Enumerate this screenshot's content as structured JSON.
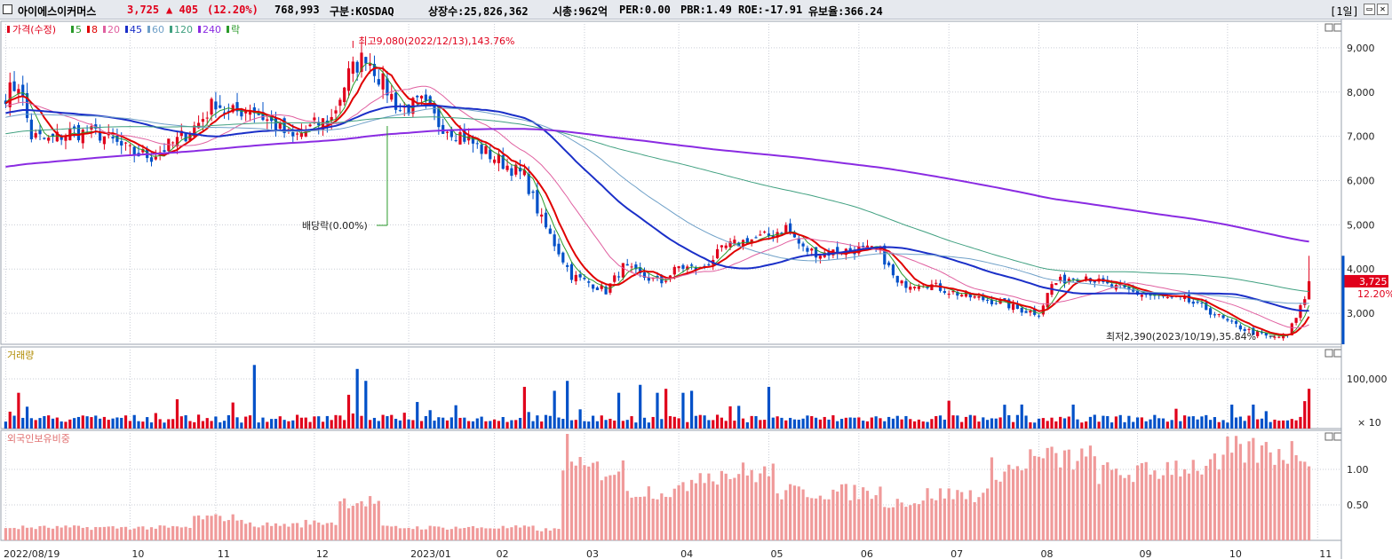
{
  "header": {
    "name": "아이에스이커머스",
    "price": "3,725",
    "change": "▲ 405",
    "change_pct": "(12.20%)",
    "volume": "768,993",
    "market": "구분:KOSDAQ",
    "shares": "상장수:25,826,362",
    "mcap": "시총:962억",
    "per": "PER:0.00",
    "pbr": "PBR:1.49",
    "roe": "ROE:-17.91",
    "float": "유보율:366.24",
    "period": "[1일]",
    "restore_icon": "restore-icon",
    "close_icon": "close-icon",
    "colors": {
      "up": "#e0001b",
      "down": "#0050c8"
    }
  },
  "legend": {
    "price_label": "가격(수정)",
    "ma": [
      {
        "label": "5",
        "color": "#2a9a2a"
      },
      {
        "label": "8",
        "color": "#e00000"
      },
      {
        "label": "20",
        "color": "#e060a0"
      },
      {
        "label": "45",
        "color": "#1a2fc8"
      },
      {
        "label": "60",
        "color": "#6fa0c8"
      },
      {
        "label": "120",
        "color": "#40a080"
      },
      {
        "label": "240",
        "color": "#8a2be2"
      }
    ],
    "ex_label": "락",
    "volume_label": "거래량",
    "foreign_label": "외국인보유비중"
  },
  "annotations": {
    "high": "최고9,080(2022/12/13),143.76%",
    "low": "최저2,390(2023/10/19),35.84%",
    "dividend": "배당락(0.00%)",
    "price_tag": "3,725",
    "price_tag_pct": "12.20%",
    "volume_unit": "× 10"
  },
  "chart_data": [
    {
      "type": "line",
      "title": "",
      "ylim": [
        2300,
        9600
      ],
      "y_ticks": [
        "9,000",
        "8,000",
        "7,000",
        "6,000",
        "5,000",
        "4,000",
        "3,000"
      ],
      "y_tick_values": [
        9000,
        8000,
        7000,
        6000,
        5000,
        4000,
        3000
      ],
      "x_tick_labels": [
        "2022/08/19",
        "10",
        "11",
        "12",
        "2023/01",
        "02",
        "03",
        "04",
        "05",
        "06",
        "07",
        "08",
        "09",
        "10",
        "11"
      ],
      "x_tick_index": [
        0,
        29,
        49,
        72,
        94,
        114,
        135,
        157,
        178,
        199,
        220,
        241,
        264,
        285,
        306
      ],
      "anchors": [
        [
          0,
          7950
        ],
        [
          3,
          8200
        ],
        [
          6,
          7000
        ],
        [
          10,
          6900
        ],
        [
          15,
          7100
        ],
        [
          22,
          7050
        ],
        [
          29,
          6650
        ],
        [
          34,
          6550
        ],
        [
          40,
          6900
        ],
        [
          45,
          7300
        ],
        [
          49,
          7800
        ],
        [
          52,
          7500
        ],
        [
          57,
          7650
        ],
        [
          62,
          7300
        ],
        [
          67,
          6950
        ],
        [
          72,
          7250
        ],
        [
          76,
          7400
        ],
        [
          80,
          8400
        ],
        [
          84,
          8850
        ],
        [
          88,
          8200
        ],
        [
          92,
          7600
        ],
        [
          97,
          7750
        ],
        [
          101,
          7300
        ],
        [
          106,
          7050
        ],
        [
          111,
          6700
        ],
        [
          116,
          6400
        ],
        [
          121,
          6100
        ],
        [
          125,
          5100
        ],
        [
          129,
          4400
        ],
        [
          132,
          3850
        ],
        [
          137,
          3650
        ],
        [
          140,
          3500
        ],
        [
          144,
          4050
        ],
        [
          148,
          3850
        ],
        [
          153,
          3700
        ],
        [
          157,
          4050
        ],
        [
          162,
          4000
        ],
        [
          168,
          4500
        ],
        [
          173,
          4650
        ],
        [
          178,
          4750
        ],
        [
          182,
          4950
        ],
        [
          186,
          4450
        ],
        [
          190,
          4350
        ],
        [
          194,
          4400
        ],
        [
          199,
          4450
        ],
        [
          204,
          4400
        ],
        [
          208,
          3650
        ],
        [
          214,
          3700
        ],
        [
          220,
          3500
        ],
        [
          226,
          3350
        ],
        [
          232,
          3250
        ],
        [
          236,
          3100
        ],
        [
          241,
          3000
        ],
        [
          244,
          3650
        ],
        [
          248,
          3800
        ],
        [
          252,
          3850
        ],
        [
          256,
          3650
        ],
        [
          260,
          3550
        ],
        [
          264,
          3450
        ],
        [
          270,
          3350
        ],
        [
          275,
          3300
        ],
        [
          280,
          3100
        ],
        [
          285,
          2800
        ],
        [
          290,
          2600
        ],
        [
          295,
          2450
        ],
        [
          299,
          2500
        ],
        [
          302,
          3150
        ],
        [
          304,
          3725
        ]
      ],
      "series": [
        {
          "name": "5",
          "window": 5,
          "color": "#2a9a2a"
        },
        {
          "name": "8",
          "window": 8,
          "color": "#e00000"
        },
        {
          "name": "20",
          "window": 20,
          "color": "#e060a0"
        },
        {
          "name": "45",
          "window": 45,
          "color": "#1a2fc8"
        },
        {
          "name": "60",
          "window": 60,
          "color": "#6fa0c8"
        },
        {
          "name": "120",
          "window": 120,
          "color": "#40a080"
        },
        {
          "name": "240",
          "window": 240,
          "color": "#8a2be2"
        }
      ],
      "last_close": 3725,
      "high": 9080,
      "low": 2390
    },
    {
      "type": "bar",
      "name": "거래량",
      "y_ticks": [
        "100,000"
      ],
      "y_tick_values": [
        100000
      ]
    },
    {
      "type": "bar",
      "name": "외국인보유비중",
      "y_ticks": [
        "1.00",
        "0.50"
      ],
      "y_tick_values": [
        1.0,
        0.5
      ]
    }
  ]
}
